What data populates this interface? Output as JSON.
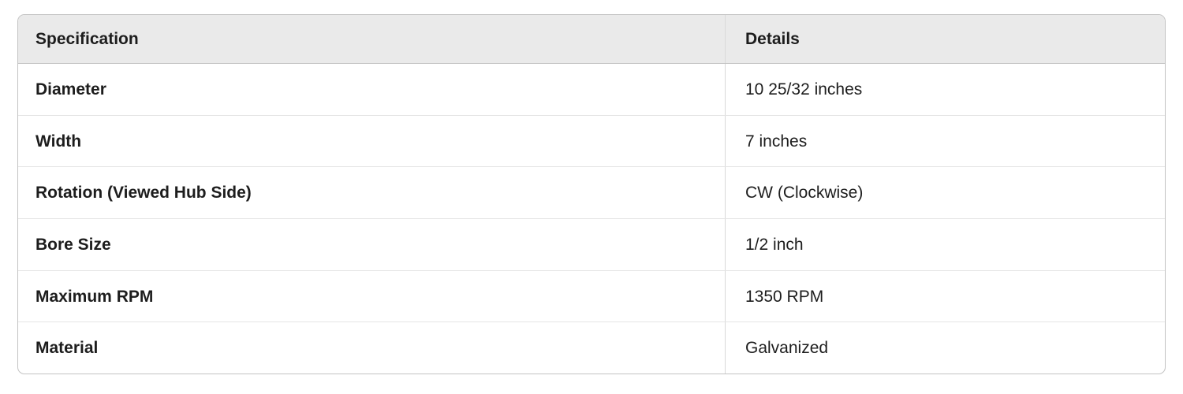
{
  "table": {
    "columns": {
      "spec_header": "Specification",
      "detail_header": "Details"
    },
    "rows": [
      {
        "spec": "Diameter",
        "detail": "10 25/32 inches"
      },
      {
        "spec": "Width",
        "detail": "7 inches"
      },
      {
        "spec": "Rotation (Viewed Hub Side)",
        "detail": "CW (Clockwise)"
      },
      {
        "spec": "Bore Size",
        "detail": "1/2 inch"
      },
      {
        "spec": "Maximum RPM",
        "detail": "1350 RPM"
      },
      {
        "spec": "Material",
        "detail": "Galvanized"
      }
    ],
    "colors": {
      "header_bg": "#eaeaea",
      "outer_border": "#c3c3c3",
      "header_border": "#c3c3c3",
      "row_divider": "#e4e4e4",
      "column_divider": "#d9d9d9",
      "text": "#1d1d1d"
    }
  }
}
